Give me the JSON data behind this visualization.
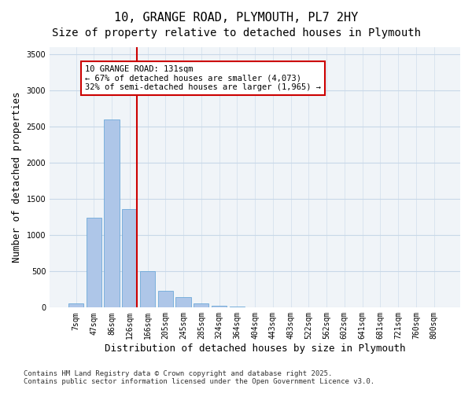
{
  "title": "10, GRANGE ROAD, PLYMOUTH, PL7 2HY",
  "subtitle": "Size of property relative to detached houses in Plymouth",
  "xlabel": "Distribution of detached houses by size in Plymouth",
  "ylabel": "Number of detached properties",
  "categories": [
    "7sqm",
    "47sqm",
    "86sqm",
    "126sqm",
    "166sqm",
    "205sqm",
    "245sqm",
    "285sqm",
    "324sqm",
    "364sqm",
    "404sqm",
    "443sqm",
    "483sqm",
    "522sqm",
    "562sqm",
    "602sqm",
    "641sqm",
    "681sqm",
    "721sqm",
    "760sqm",
    "800sqm"
  ],
  "values": [
    60,
    1240,
    2600,
    1360,
    500,
    230,
    150,
    60,
    30,
    10,
    5,
    0,
    0,
    0,
    0,
    0,
    0,
    0,
    0,
    0,
    0
  ],
  "bar_color": "#aec6e8",
  "bar_edgecolor": "#5a9fd4",
  "vline_x_index": 3,
  "vline_color": "#cc0000",
  "annotation_text": "10 GRANGE ROAD: 131sqm\n← 67% of detached houses are smaller (4,073)\n32% of semi-detached houses are larger (1,965) →",
  "annotation_box_color": "#cc0000",
  "ylim": [
    0,
    3600
  ],
  "yticks": [
    0,
    500,
    1000,
    1500,
    2000,
    2500,
    3000,
    3500
  ],
  "grid_color": "#c8d8e8",
  "background_color": "#f0f4f8",
  "footer_line1": "Contains HM Land Registry data © Crown copyright and database right 2025.",
  "footer_line2": "Contains public sector information licensed under the Open Government Licence v3.0.",
  "title_fontsize": 11,
  "subtitle_fontsize": 10,
  "xlabel_fontsize": 9,
  "ylabel_fontsize": 9,
  "tick_fontsize": 7,
  "annotation_fontsize": 7.5,
  "footer_fontsize": 6.5
}
